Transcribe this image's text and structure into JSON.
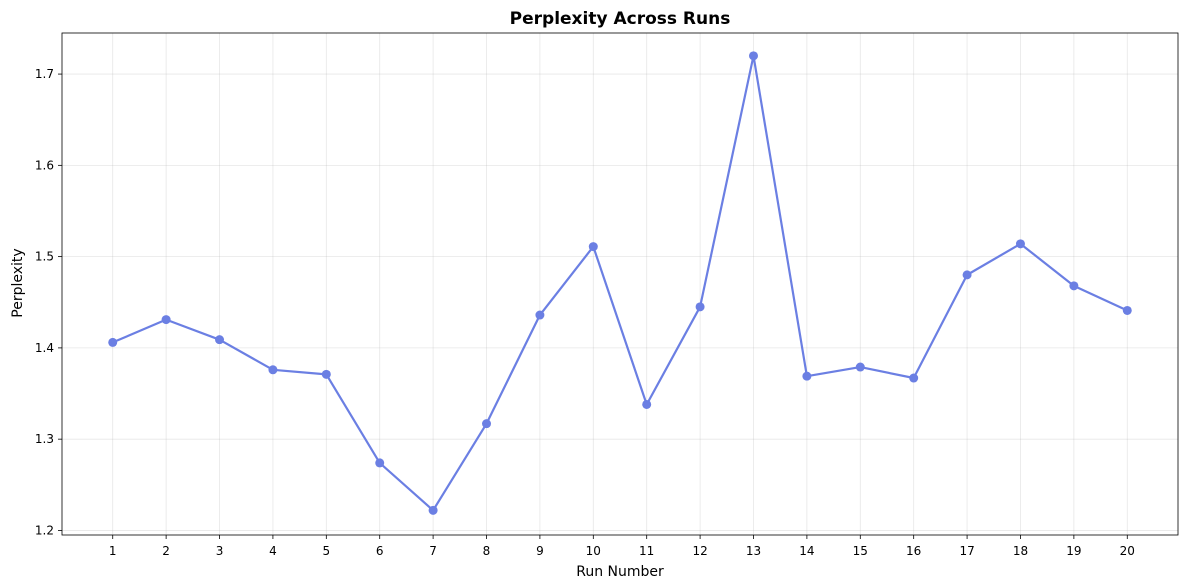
{
  "chart_data": {
    "type": "line",
    "title": "Perplexity Across Runs",
    "xlabel": "Run Number",
    "ylabel": "Perplexity",
    "x": [
      1,
      2,
      3,
      4,
      5,
      6,
      7,
      8,
      9,
      10,
      11,
      12,
      13,
      14,
      15,
      16,
      17,
      18,
      19,
      20
    ],
    "series": [
      {
        "values": [
          1.406,
          1.431,
          1.409,
          1.376,
          1.371,
          1.274,
          1.222,
          1.317,
          1.436,
          1.511,
          1.338,
          1.445,
          1.72,
          1.369,
          1.379,
          1.367,
          1.48,
          1.514,
          1.468,
          1.441
        ],
        "color": "#6b7fe3"
      }
    ],
    "xlim": [
      0.05,
      20.95
    ],
    "ylim": [
      1.195,
      1.745
    ],
    "yticks": [
      "1.2",
      "1.3",
      "1.4",
      "1.5",
      "1.6",
      "1.7"
    ],
    "xticks": [
      "1",
      "2",
      "3",
      "4",
      "5",
      "6",
      "7",
      "8",
      "9",
      "10",
      "11",
      "12",
      "13",
      "14",
      "15",
      "16",
      "17",
      "18",
      "19",
      "20"
    ],
    "grid": true,
    "legend": "none"
  }
}
